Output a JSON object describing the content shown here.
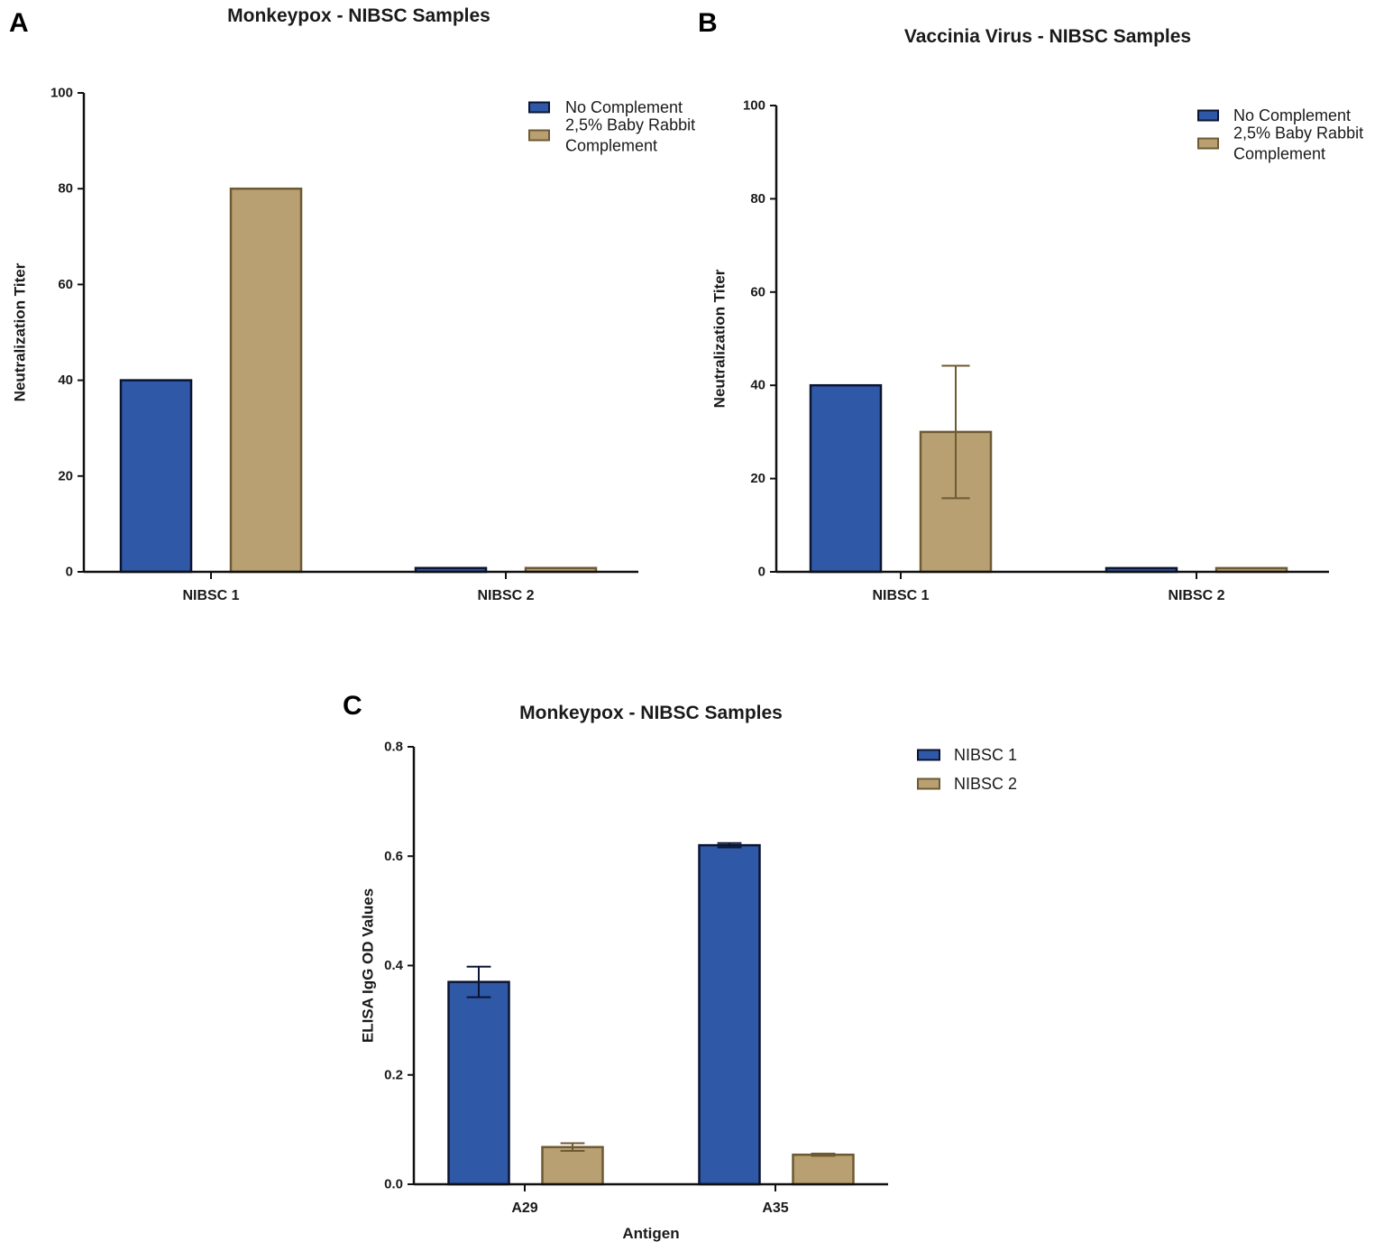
{
  "colors": {
    "series_blue": "#2f58a6",
    "series_blue_edge": "#0b1533",
    "series_tan": "#b8a072",
    "series_tan_edge": "#6e5a33"
  },
  "chart_data": [
    {
      "panel": "A",
      "type": "bar",
      "title": "Monkeypox - NIBSC Samples",
      "xlabel": "",
      "ylabel": "Neutralization Titer",
      "ylim": [
        0,
        100
      ],
      "yticks": [
        0,
        20,
        40,
        60,
        80,
        100
      ],
      "ytick_labels": [
        "0",
        "20",
        "40",
        "60",
        "80",
        "100"
      ],
      "categories": [
        "NIBSC 1",
        "NIBSC 2"
      ],
      "legend_position": "top-right",
      "series": [
        {
          "name": "No Complement",
          "legend_lines": [
            "No Complement"
          ],
          "color": "#2f58a6",
          "values": [
            40,
            0.8
          ],
          "errors": [
            null,
            null
          ]
        },
        {
          "name": "2,5% Baby Rabbit Complement",
          "legend_lines": [
            "2,5% Baby Rabbit",
            "Complement"
          ],
          "color": "#b8a072",
          "values": [
            80,
            0.8
          ],
          "errors": [
            null,
            null
          ]
        }
      ]
    },
    {
      "panel": "B",
      "type": "bar",
      "title": "Vaccinia Virus - NIBSC Samples",
      "xlabel": "",
      "ylabel": "Neutralization Titer",
      "ylim": [
        0,
        100
      ],
      "yticks": [
        0,
        20,
        40,
        60,
        80,
        100
      ],
      "ytick_labels": [
        "0",
        "20",
        "40",
        "60",
        "80",
        "100"
      ],
      "categories": [
        "NIBSC 1",
        "NIBSC 2"
      ],
      "legend_position": "top-right",
      "series": [
        {
          "name": "No Complement",
          "legend_lines": [
            "No Complement"
          ],
          "color": "#2f58a6",
          "values": [
            40,
            0.8
          ],
          "errors": [
            null,
            null
          ]
        },
        {
          "name": "2,5% Baby Rabbit Complement",
          "legend_lines": [
            "2,5% Baby Rabbit",
            "Complement"
          ],
          "color": "#b8a072",
          "values": [
            30,
            0.8
          ],
          "errors": [
            14.2,
            null
          ]
        }
      ]
    },
    {
      "panel": "C",
      "type": "bar",
      "title": "Monkeypox - NIBSC Samples",
      "xlabel": "Antigen",
      "ylabel": "ELISA IgG OD Values",
      "ylim": [
        0,
        0.8
      ],
      "yticks": [
        0,
        0.2,
        0.4,
        0.6,
        0.8
      ],
      "ytick_labels": [
        "0.0",
        "0.2",
        "0.4",
        "0.6",
        "0.8"
      ],
      "categories": [
        "A29",
        "A35"
      ],
      "legend_position": "top-right",
      "series": [
        {
          "name": "NIBSC 1",
          "legend_lines": [
            "NIBSC 1"
          ],
          "color": "#2f58a6",
          "values": [
            0.37,
            0.62
          ],
          "errors": [
            0.028,
            0.004
          ]
        },
        {
          "name": "NIBSC 2",
          "legend_lines": [
            "NIBSC 2"
          ],
          "color": "#b8a072",
          "values": [
            0.068,
            0.054
          ],
          "errors": [
            0.007,
            0.002
          ]
        }
      ]
    }
  ]
}
